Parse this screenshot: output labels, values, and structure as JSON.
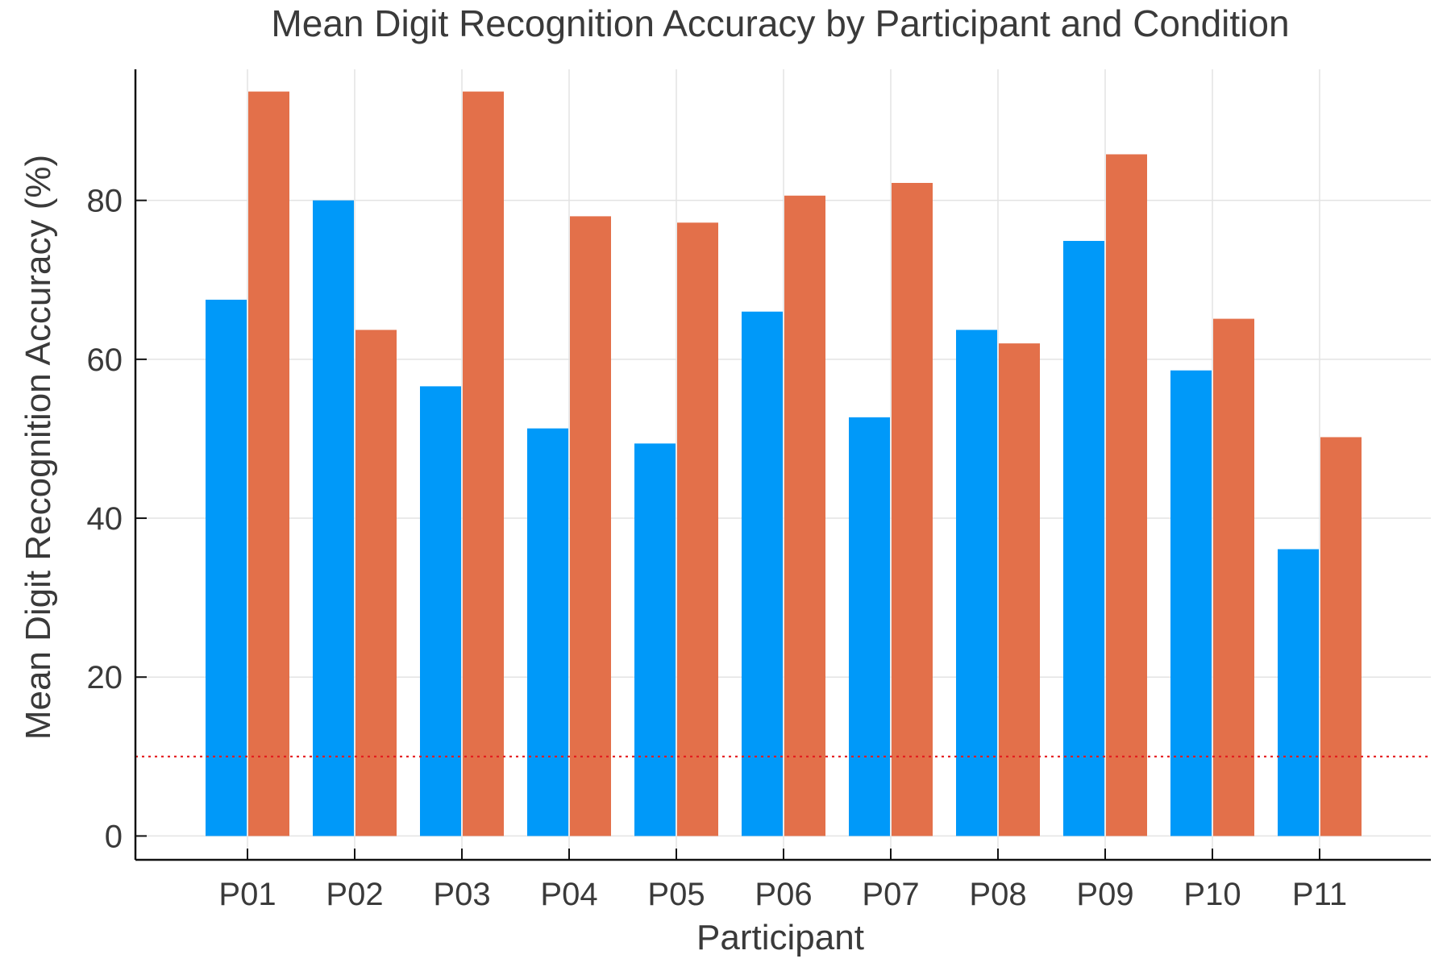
{
  "chart_data": {
    "type": "bar",
    "title": "Mean Digit Recognition Accuracy by Participant and Condition",
    "xlabel": "Participant",
    "ylabel": "Mean Digit Recognition Accuracy (%)",
    "categories": [
      "P01",
      "P02",
      "P03",
      "P04",
      "P05",
      "P06",
      "P07",
      "P08",
      "P09",
      "P10",
      "P11"
    ],
    "series": [
      {
        "color": "#0099f9",
        "values": [
          67.5,
          80.0,
          56.6,
          51.3,
          49.4,
          66.0,
          52.7,
          63.7,
          74.9,
          58.6,
          36.1
        ]
      },
      {
        "color": "#e3704a",
        "values": [
          93.7,
          63.7,
          93.7,
          78.0,
          77.2,
          80.6,
          82.2,
          62.0,
          85.8,
          65.1,
          50.2
        ]
      }
    ],
    "reference_line": {
      "value": 10,
      "color": "#e41a1c",
      "style": "dotted"
    },
    "yticks": [
      0,
      20,
      40,
      60,
      80
    ],
    "ylim": [
      -3,
      96.5
    ],
    "grid": true,
    "legend": "none"
  }
}
